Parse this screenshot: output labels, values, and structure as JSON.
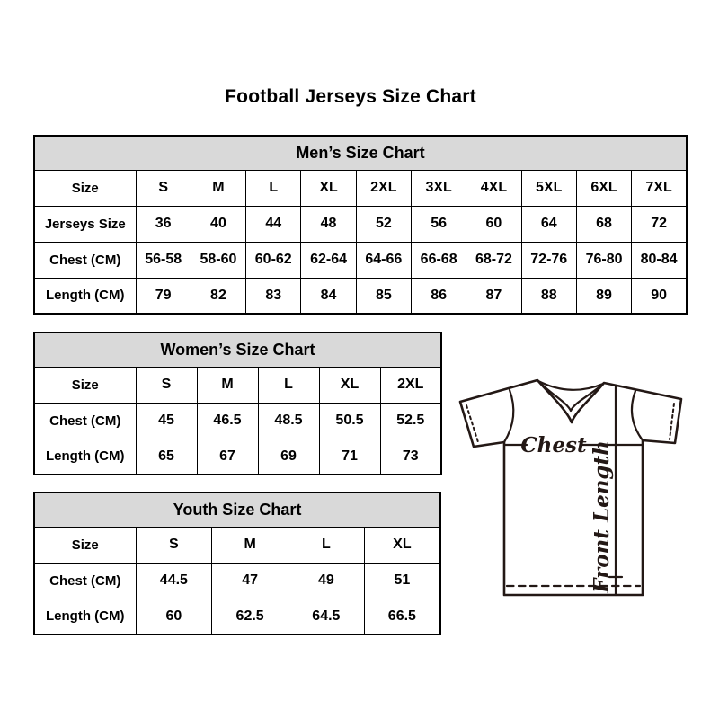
{
  "page_title": "Football Jerseys Size Chart",
  "tables": {
    "mens": {
      "header": "Men’s Size Chart",
      "rows": [
        [
          "Size",
          "S",
          "M",
          "L",
          "XL",
          "2XL",
          "3XL",
          "4XL",
          "5XL",
          "6XL",
          "7XL"
        ],
        [
          "Jerseys Size",
          "36",
          "40",
          "44",
          "48",
          "52",
          "56",
          "60",
          "64",
          "68",
          "72"
        ],
        [
          "Chest (CM)",
          "56-58",
          "58-60",
          "60-62",
          "62-64",
          "64-66",
          "66-68",
          "68-72",
          "72-76",
          "76-80",
          "80-84"
        ],
        [
          "Length (CM)",
          "79",
          "82",
          "83",
          "84",
          "85",
          "86",
          "87",
          "88",
          "89",
          "90"
        ]
      ]
    },
    "womens": {
      "header": "Women’s Size Chart",
      "rows": [
        [
          "Size",
          "S",
          "M",
          "L",
          "XL",
          "2XL"
        ],
        [
          "Chest (CM)",
          "45",
          "46.5",
          "48.5",
          "50.5",
          "52.5"
        ],
        [
          "Length (CM)",
          "65",
          "67",
          "69",
          "71",
          "73"
        ]
      ]
    },
    "youth": {
      "header": "Youth Size Chart",
      "rows": [
        [
          "Size",
          "S",
          "M",
          "L",
          "XL"
        ],
        [
          "Chest (CM)",
          "44.5",
          "47",
          "49",
          "51"
        ],
        [
          "Length (CM)",
          "60",
          "62.5",
          "64.5",
          "66.5"
        ]
      ]
    }
  },
  "diagram": {
    "chest_label": "Chest",
    "front_length_label": "Front Length"
  },
  "colors": {
    "table_header_bg": "#d9d9d9",
    "table_border": "#000000",
    "diagram_stroke": "#231815"
  }
}
